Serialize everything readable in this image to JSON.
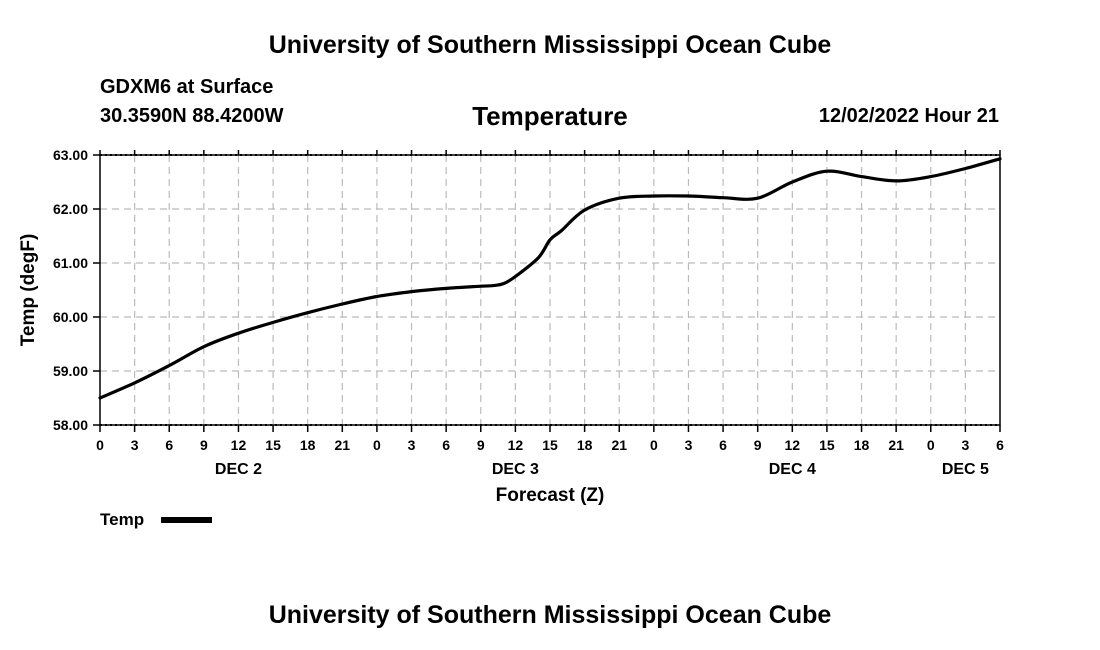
{
  "page": {
    "top_title": "University of Southern Mississippi Ocean Cube",
    "bottom_title": "University of Southern Mississippi Ocean Cube",
    "station": "GDXM6 at Surface",
    "coords": "30.3590N  88.4200W",
    "subtitle": "Temperature",
    "run_time": "12/02/2022 Hour 21"
  },
  "chart_data": {
    "type": "line",
    "title": "Temperature",
    "xlabel": "Forecast (Z)",
    "ylabel": "Temp (degF)",
    "ylim": [
      58,
      63
    ],
    "xlim": [
      0,
      78
    ],
    "grid": true,
    "y_ticks": [
      "58.00",
      "59.00",
      "60.00",
      "61.00",
      "62.00",
      "63.00"
    ],
    "x_ticks": [
      "0",
      "3",
      "6",
      "9",
      "12",
      "15",
      "18",
      "21",
      "0",
      "3",
      "6",
      "9",
      "12",
      "15",
      "18",
      "21",
      "0",
      "3",
      "6",
      "9",
      "12",
      "15",
      "18",
      "21",
      "0",
      "3",
      "6"
    ],
    "day_labels": [
      {
        "label": "DEC 2",
        "hour": 12
      },
      {
        "label": "DEC 3",
        "hour": 36
      },
      {
        "label": "DEC 4",
        "hour": 60
      },
      {
        "label": "DEC 5",
        "hour": 75
      }
    ],
    "legend": {
      "label": "Temp",
      "placement": "bottom-left"
    },
    "series": [
      {
        "name": "Temp",
        "color": "#000000",
        "x": [
          0,
          3,
          6,
          9,
          12,
          15,
          18,
          21,
          24,
          27,
          30,
          33,
          34,
          35,
          36,
          38,
          39,
          40,
          42,
          45,
          48,
          51,
          54,
          57,
          60,
          63,
          66,
          69,
          72,
          75,
          78
        ],
        "values": [
          58.5,
          58.78,
          59.1,
          59.45,
          59.7,
          59.9,
          60.08,
          60.24,
          60.38,
          60.47,
          60.53,
          60.57,
          60.58,
          60.62,
          60.75,
          61.1,
          61.43,
          61.6,
          61.98,
          62.2,
          62.24,
          62.24,
          62.21,
          62.2,
          62.5,
          62.7,
          62.6,
          62.52,
          62.6,
          62.75,
          62.93
        ]
      }
    ]
  }
}
